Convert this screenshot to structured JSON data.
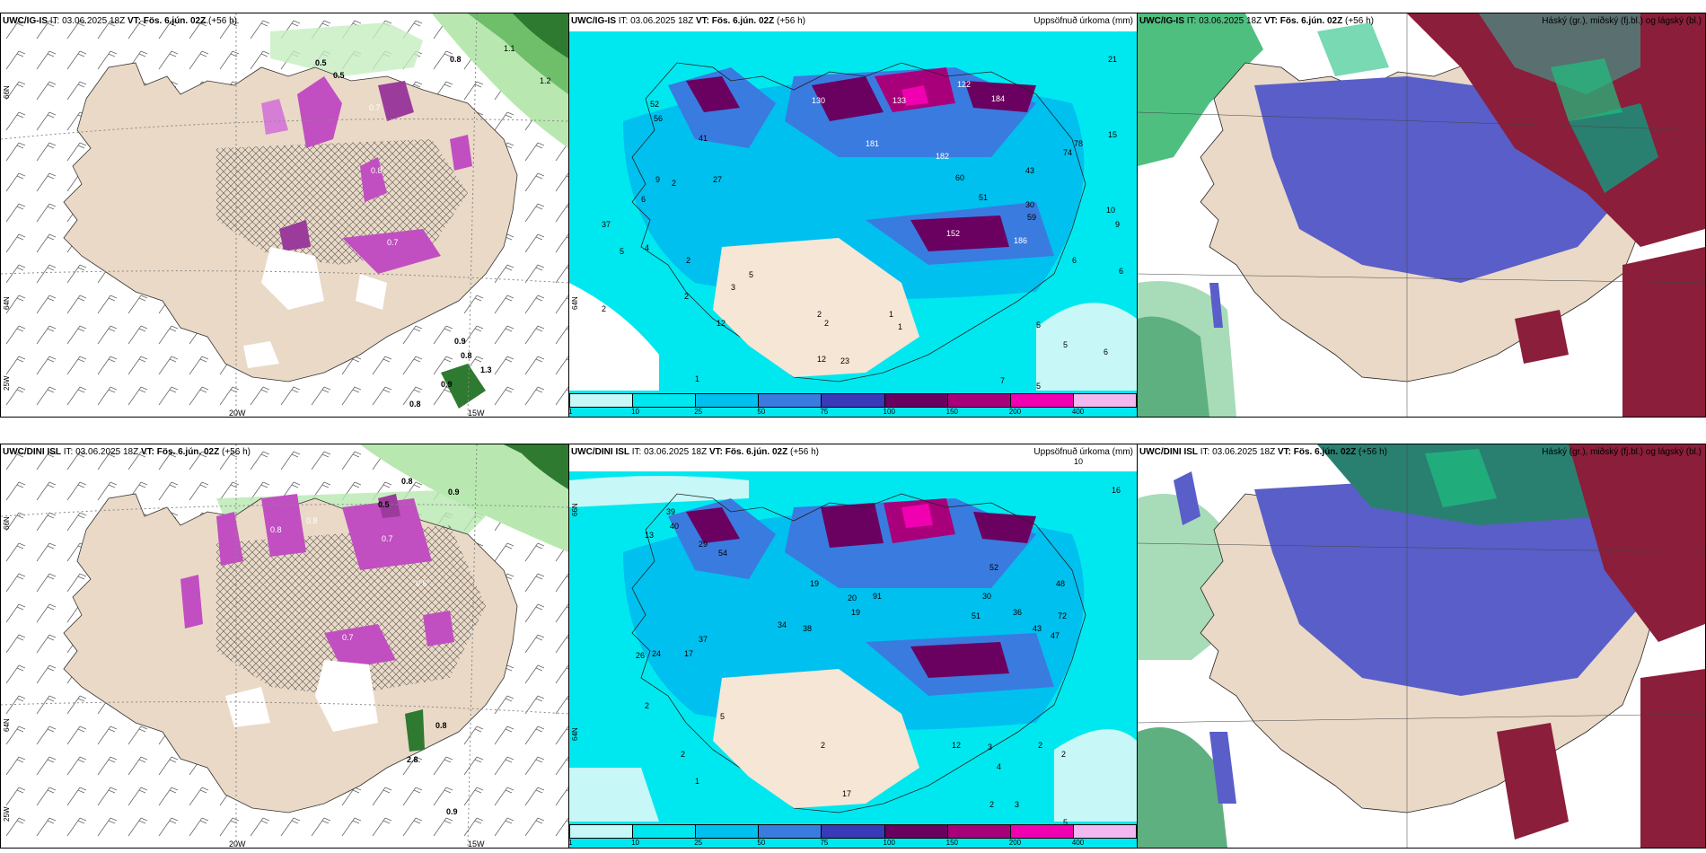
{
  "panels": [
    {
      "model": "UWC/IG-IS",
      "it_label": "IT:",
      "it": "03.06.2025 18Z",
      "vt_label": "VT:",
      "vt": "Fös. 6.jún. 02Z",
      "lead": "(+56 h)",
      "right": ""
    },
    {
      "model": "UWC/IG-IS",
      "it_label": "IT:",
      "it": "03.06.2025 18Z",
      "vt_label": "VT:",
      "vt": "Fös. 6.jún. 02Z",
      "lead": "(+56 h)",
      "right": "Uppsöfnuð úrkoma (mm)"
    },
    {
      "model": "UWC/IG-IS",
      "it_label": "IT:",
      "it": "03.06.2025 18Z",
      "vt_label": "VT:",
      "vt": "Fös. 6.jún. 02Z",
      "lead": "(+56 h)",
      "right": "Háský (gr.), miðský (fj.bl.) og lágský (bl.)"
    },
    {
      "model": "UWC/DINI ISL",
      "it_label": "IT:",
      "it": "03.06.2025 18Z",
      "vt_label": "VT:",
      "vt": "Fös. 6.jún. 02Z",
      "lead": "(+56 h)",
      "right": ""
    },
    {
      "model": "UWC/DINI ISL",
      "it_label": "IT:",
      "it": "03.06.2025 18Z",
      "vt_label": "VT:",
      "vt": "Fös. 6.jún. 02Z",
      "lead": "(+56 h)",
      "right": "Uppsöfnuð úrkoma (mm)"
    },
    {
      "model": "UWC/DINI ISL",
      "it_label": "IT:",
      "it": "03.06.2025 18Z",
      "vt_label": "VT:",
      "vt": "Fös. 6.jún. 02Z",
      "lead": "(+56 h)",
      "right": "Háský (gr.), miðský (fj.bl.) og lágský (bl.)"
    }
  ],
  "axes": {
    "lon_20": "20W",
    "lon_15": "15W",
    "lat_66": "66N",
    "lat_64": "64N",
    "lon_25": "25W"
  },
  "colorbar": {
    "ticks": [
      "1",
      "10",
      "25",
      "50",
      "75",
      "100",
      "150",
      "200",
      "400"
    ],
    "colors": [
      "#c8f7f7",
      "#00e8ef",
      "#00c0ef",
      "#3a7be0",
      "#3a3ab8",
      "#6a0060",
      "#a8007a",
      "#f000b0",
      "#f4b8f0"
    ]
  },
  "precip_labels_top": [
    "21",
    "15",
    "10",
    "9",
    "6",
    "6",
    "5",
    "5",
    "6",
    "7",
    "5",
    "122",
    "182",
    "133",
    "181",
    "130",
    "152",
    "184",
    "186",
    "74",
    "78",
    "52",
    "56",
    "37",
    "41",
    "27",
    "9",
    "2",
    "6",
    "4",
    "5",
    "2",
    "2",
    "2",
    "12",
    "1",
    "12",
    "23",
    "1",
    "1",
    "2",
    "2",
    "3",
    "5",
    "60",
    "51",
    "43",
    "30",
    "59"
  ],
  "precip_labels_bottom": [
    "16",
    "10",
    "13",
    "39",
    "40",
    "29",
    "26",
    "24",
    "17",
    "37",
    "54",
    "19",
    "20",
    "19",
    "91",
    "30",
    "34",
    "51",
    "36",
    "43",
    "47",
    "48",
    "52",
    "72",
    "38",
    "2",
    "2",
    "5",
    "1",
    "2",
    "12",
    "3",
    "4",
    "2",
    "2",
    "2",
    "3",
    "5",
    "17"
  ],
  "snow_labels_top": [
    "0.5",
    "0.8",
    "0.5",
    "0.7",
    "0.8",
    "1.1",
    "1.2",
    "0.7",
    "0.9",
    "1.3",
    "0.8",
    "0.9",
    "0.8"
  ],
  "snow_labels_bottom": [
    "0.8",
    "0.9",
    "0.5",
    "0.7",
    "0.8",
    "0.5",
    "0.7",
    "0.8",
    "2.8",
    "0.9",
    "0.8"
  ]
}
